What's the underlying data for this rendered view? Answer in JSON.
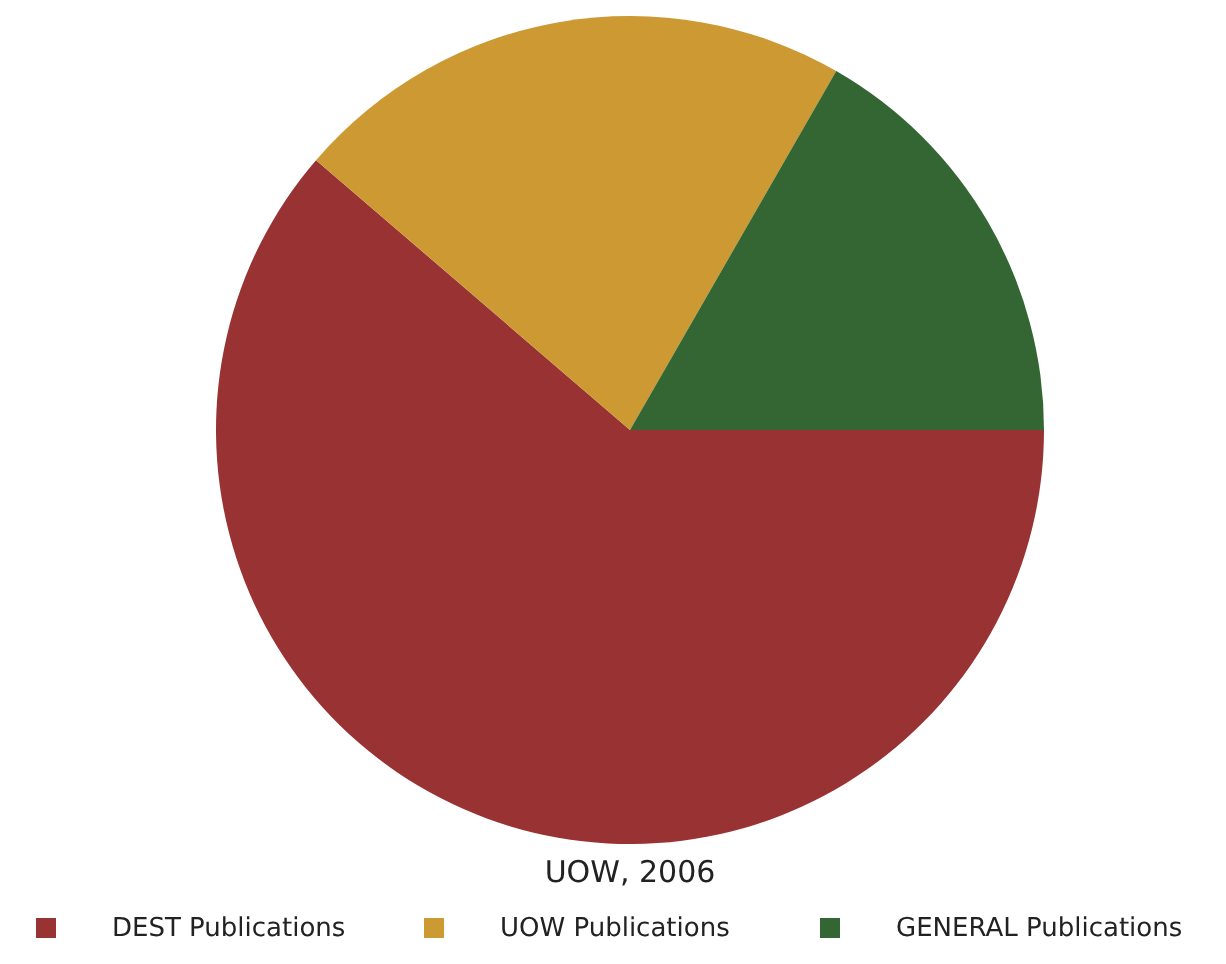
{
  "chart_data": {
    "type": "pie",
    "title": "UOW, 2006",
    "categories": [
      "DEST Publications",
      "UOW Publications",
      "GENERAL Publications"
    ],
    "values": [
      61.3,
      22,
      16.7
    ],
    "colors": [
      "#993333",
      "#cc9933",
      "#336633"
    ],
    "legend": "bottom"
  }
}
